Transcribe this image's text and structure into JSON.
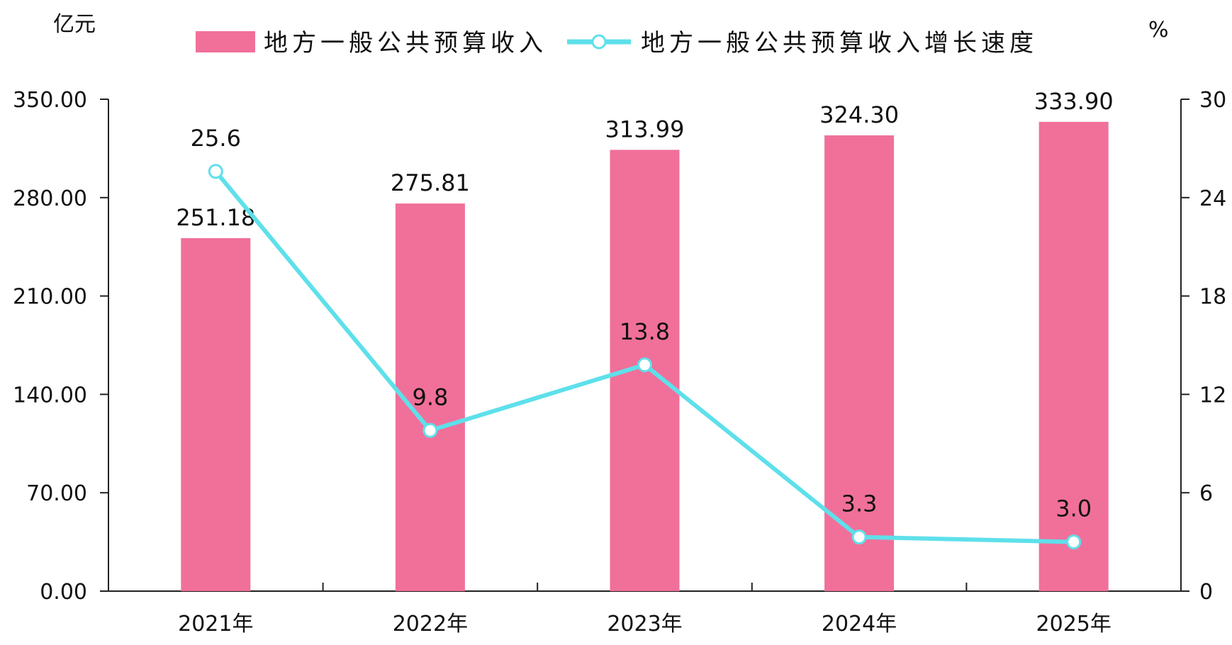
{
  "chart_data": {
    "type": "bar",
    "categories": [
      "2021年",
      "2022年",
      "2023年",
      "2024年",
      "2025年"
    ],
    "series": [
      {
        "name": "地方一般公共预算收入",
        "type": "bar",
        "axis": "left",
        "values": [
          251.18,
          275.81,
          313.99,
          324.3,
          333.9
        ],
        "labels": [
          "251.18",
          "275.81",
          "313.99",
          "324.30",
          "333.90"
        ],
        "color": "#f0709a"
      },
      {
        "name": "地方一般公共预算收入增长速度",
        "type": "line",
        "axis": "right",
        "values": [
          25.6,
          9.8,
          13.8,
          3.3,
          3.0
        ],
        "labels": [
          "25.6",
          "9.8",
          "13.8",
          "3.3",
          "3.0"
        ],
        "color": "#5ee0ea"
      }
    ],
    "y_left": {
      "unit": "亿元",
      "ylim": [
        0,
        350
      ],
      "ticks": [
        "0.00",
        "70.00",
        "140.00",
        "210.00",
        "280.00",
        "350.00"
      ]
    },
    "y_right": {
      "unit": "%",
      "ylim": [
        0,
        30
      ],
      "ticks": [
        "0",
        "6",
        "12",
        "18",
        "24",
        "30"
      ]
    },
    "legend_position": "top",
    "grid": false
  }
}
